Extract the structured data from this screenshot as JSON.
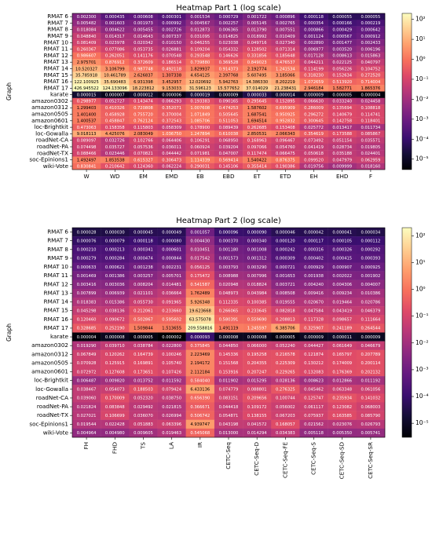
{
  "chart_data": [
    {
      "type": "heatmap",
      "title": "Heatmap Part 1 (log scale)",
      "ylabel": "Graph",
      "xlabel": "",
      "colorscale": "log",
      "colormap": "magma",
      "vrange": [
        3e-06,
        200
      ],
      "colorbar_ticks": [
        "10²",
        "10¹",
        "10⁰",
        "10⁻¹",
        "10⁻²",
        "10⁻³",
        "10⁻⁴",
        "10⁻⁵"
      ],
      "colorbar_tick_values": [
        100,
        10,
        1,
        0.1,
        0.01,
        0.001,
        0.0001,
        1e-05
      ],
      "rows": [
        "RMAT 6",
        "RMAT 7",
        "RMAT 8",
        "RMAT 9",
        "RMAT 10",
        "RMAT 11",
        "RMAT 12",
        "RMAT 13",
        "RMAT 14",
        "RMAT 15",
        "RMAT 16",
        "RMAT 17",
        "karate",
        "amazon0302",
        "amazon0312",
        "amazon0505",
        "amazon0601",
        "loc-Brightkit",
        "loc-Gowalla",
        "roadNet-CA",
        "roadNet-PA",
        "roadNet-TX",
        "soc-Epinions1",
        "wiki-Vote"
      ],
      "columns": [
        "W",
        "WD",
        "EM",
        "EMD",
        "EB",
        "EBD",
        "ET",
        "ETD",
        "EH",
        "EHD",
        "F"
      ],
      "values": [
        [
          0.0023,
          0.000435,
          0.000608,
          0.000301,
          0.001534,
          0.000729,
          0.001722,
          0.000896,
          0.000118,
          5.5e-05,
          5.5e-05
        ],
        [
          0.005482,
          0.001603,
          0.001973,
          0.000992,
          0.004567,
          0.002257,
          0.005145,
          0.002765,
          0.000354,
          0.000166,
          0.000219
        ],
        [
          0.018084,
          0.004622,
          0.005455,
          0.002726,
          0.012873,
          0.006365,
          0.01379,
          0.007551,
          0.000866,
          0.000429,
          0.000642
        ],
        [
          0.04884,
          0.014317,
          0.014643,
          0.007337,
          0.031095,
          0.014825,
          0.018992,
          0.010409,
          0.001124,
          0.000567,
          0.000912
        ],
        [
          0.081409,
          0.023978,
          0.020342,
          0.01015,
          0.046255,
          0.023038,
          0.049716,
          0.02734,
          0.00289,
          0.001477,
          0.002433
        ],
        [
          0.260367,
          0.077086,
          0.053735,
          0.026881,
          0.109204,
          0.054332,
          0.128502,
          0.071314,
          0.006977,
          0.00352,
          0.006196
        ],
        [
          0.986607,
          0.262051,
          0.141176,
          0.070548,
          0.293548,
          0.146626,
          0.331856,
          0.185648,
          0.017128,
          0.008613,
          0.015863
        ],
        [
          2.975701,
          0.876912,
          0.372609,
          0.186514,
          0.73988,
          0.369528,
          0.849023,
          0.476537,
          0.044211,
          0.022125,
          0.040797
        ],
        [
          10.520327,
          3.106799,
          0.987748,
          0.492118,
          1.829937,
          0.914373,
          2.192774,
          1.241534,
          0.114199,
          0.056226,
          0.104752
        ],
        [
          35.785918,
          10.461789,
          2.626837,
          1.307338,
          4.654125,
          2.397768,
          5.607495,
          3.185066,
          0.31823,
          0.152634,
          0.27252
        ],
        [
          122.100925,
          35.690483,
          6.931398,
          3.452957,
          12.020692,
          5.942763,
          14.38633,
          8.202219,
          1.072659,
          0.51392,
          0.714004
        ],
        [
          426.945522,
          124.133096,
          18.223812,
          9.153033,
          31.596123,
          15.577652,
          37.014029,
          21.238431,
          2.946184,
          1.582771,
          1.865376
        ],
        [
          1.5e-05,
          7e-06,
          1.2e-05,
          6e-06,
          1.9e-05,
          9e-06,
          3.3e-05,
          1.4e-05,
          9e-06,
          5e-06,
          4e-06
        ],
        [
          0.298977,
          0.052727,
          0.143474,
          0.066293,
          0.193383,
          0.090165,
          0.295645,
          0.152895,
          0.06663,
          0.03324,
          0.024458
        ],
        [
          1.299403,
          0.410326,
          0.720808,
          0.352071,
          1.007608,
          0.474253,
          1.587602,
          0.695909,
          0.286009,
          0.135694,
          0.108818
        ],
        [
          1.4014,
          0.458928,
          0.75572,
          0.370004,
          1.071849,
          0.505645,
          1.687541,
          0.950925,
          0.296272,
          0.140679,
          0.114741
        ],
        [
          1.400537,
          0.458847,
          0.762124,
          0.372543,
          1.085706,
          0.511053,
          1.694514,
          0.952832,
          0.300645,
          0.142758,
          0.118401
        ],
        [
          0.473063,
          0.158358,
          0.115803,
          0.058309,
          0.1789,
          0.089439,
          0.262685,
          0.153408,
          0.025772,
          0.013417,
          0.011734
        ],
        [
          9.018113,
          4.425076,
          2.083049,
          1.03675,
          1.247894,
          0.610038,
          2.850531,
          2.066343,
          0.354619,
          0.173588,
          0.085867
        ],
        [
          0.089097,
          0.032726,
          0.102766,
          0.064406,
          0.106291,
          0.06895,
          0.168963,
          0.096467,
          0.073492,
          0.051154,
          0.035571
        ],
        [
          0.074498,
          0.035727,
          0.057536,
          0.036011,
          0.060924,
          0.039204,
          0.097066,
          0.05476,
          0.041419,
          0.028734,
          0.019805
        ],
        [
          0.088466,
          0.023446,
          0.070821,
          0.044442,
          0.071981,
          0.047007,
          0.117474,
          0.066475,
          0.050618,
          0.035188,
          0.024401
        ],
        [
          1.492497,
          1.853538,
          0.615327,
          0.306473,
          1.114339,
          0.569414,
          1.540422,
          0.876375,
          0.09952,
          0.047979,
          0.062959
        ],
        [
          0.830841,
          0.210642,
          0.12436,
          0.062224,
          0.290031,
          0.145106,
          0.355414,
          0.190386,
          0.019756,
          0.009999,
          0.01816
        ]
      ]
    },
    {
      "type": "heatmap",
      "title": "Heatmap Part 2 (log scale)",
      "ylabel": "Graph",
      "xlabel": "",
      "colorscale": "log",
      "colormap": "magma",
      "vrange": [
        3e-06,
        200
      ],
      "colorbar_ticks": [
        "10²",
        "10¹",
        "10⁰",
        "10⁻¹",
        "10⁻²",
        "10⁻³",
        "10⁻⁴",
        "10⁻⁵"
      ],
      "colorbar_tick_values": [
        100,
        10,
        1,
        0.1,
        0.01,
        0.001,
        0.0001,
        1e-05
      ],
      "rows": [
        "RMAT 6",
        "RMAT 7",
        "RMAT 8",
        "RMAT 9",
        "RMAT 10",
        "RMAT 11",
        "RMAT 12",
        "RMAT 13",
        "RMAT 14",
        "RMAT 15",
        "RMAT 16",
        "RMAT 17",
        "karate",
        "amazon0302",
        "amazon0312",
        "amazon0505",
        "amazon0601",
        "loc-Brightkit",
        "loc-Gowalla",
        "roadNet-CA",
        "roadNet-PA",
        "roadNet-TX",
        "soc-Epinions1",
        "wiki-Vote"
      ],
      "columns": [
        "FH",
        "FHD",
        "TS",
        "LA",
        "IR",
        "CETC-Seq",
        "CETC-Seq-D",
        "CETC-Seq-FE",
        "CETC-Seq-S",
        "CETC-Seq-SD",
        "CETC-Seq-SR"
      ],
      "values": [
        [
          2.8e-05,
          3e-05,
          4.5e-05,
          4.9e-05,
          0.001057,
          9.6e-05,
          9e-05,
          4.6e-05,
          4.2e-05,
          4.1e-05,
          3.4e-05
        ],
        [
          7.6e-05,
          7.9e-05,
          0.000118,
          8e-05,
          0.00443,
          0.00037,
          0.00034,
          0.00012,
          0.000117,
          0.000105,
          0.000112
        ],
        [
          0.00021,
          0.000213,
          0.000341,
          0.000601,
          0.010451,
          0.00118,
          0.001008,
          0.000242,
          0.000316,
          0.000326,
          0.000292
        ],
        [
          0.000279,
          0.000284,
          0.000474,
          0.000844,
          0.017542,
          0.001573,
          0.001312,
          0.000309,
          0.000402,
          0.000415,
          0.000393
        ],
        [
          0.000633,
          0.000621,
          0.001238,
          0.002231,
          0.056125,
          0.003793,
          0.00329,
          0.000721,
          0.000929,
          0.000907,
          0.000925
        ],
        [
          0.001469,
          0.001386,
          0.003257,
          0.005701,
          0.175472,
          0.008988,
          0.007996,
          0.001653,
          0.001938,
          0.002022,
          0.001902
        ],
        [
          0.003416,
          0.003036,
          0.008204,
          0.014481,
          0.541587,
          0.020948,
          0.018824,
          0.003721,
          0.00424,
          0.004306,
          0.004007
        ],
        [
          0.007899,
          0.006939,
          0.021101,
          0.036664,
          1.762489,
          0.048973,
          0.043984,
          0.008508,
          0.009416,
          0.009234,
          0.010386
        ],
        [
          0.018383,
          0.015386,
          0.05573,
          0.091965,
          5.926348,
          0.112335,
          0.100385,
          0.019555,
          0.02067,
          0.019464,
          0.020786
        ],
        [
          0.045298,
          0.038136,
          0.212061,
          0.23366,
          19.623668,
          0.266065,
          0.233645,
          0.082818,
          0.047584,
          0.043419,
          0.046379
        ],
        [
          0.12046,
          0.090672,
          0.502867,
          0.595602,
          63.575078,
          0.580391,
          0.55969,
          0.208813,
          0.117328,
          0.098657,
          0.111664
        ],
        [
          0.328685,
          0.25219,
          1.509844,
          1.513655,
          209.558816,
          1.491119,
          1.245597,
          6.385706,
          0.325907,
          0.241189,
          0.264544
        ],
        [
          4e-06,
          8e-06,
          5e-06,
          2e-06,
          9.3e-05,
          8e-06,
          8e-06,
          5e-06,
          9e-06,
          1.1e-05,
          9e-06
        ],
        [
          0.01929,
          0.03971,
          0.038784,
          0.0228,
          0.375845,
          0.04485,
          0.066,
          0.05224,
          0.044427,
          0.061649,
          0.046679
        ],
        [
          0.067849,
          0.120262,
          0.164739,
          0.100246,
          2.223469,
          0.145336,
          0.195258,
          0.216578,
          0.121874,
          0.165797,
          0.207789
        ],
        [
          0.070928,
          0.125915,
          0.169891,
          0.10574,
          2.194172,
          0.151568,
          0.204355,
          0.225309,
          0.130212,
          0.174009,
          0.200114
        ],
        [
          0.072972,
          0.127608,
          0.173651,
          0.107426,
          2.112184,
          0.153916,
          0.207247,
          0.229265,
          0.132083,
          0.176369,
          0.202132
        ],
        [
          0.006487,
          0.00982,
          0.013752,
          0.011592,
          0.58404,
          0.011902,
          0.015295,
          0.028136,
          0.008623,
          0.012866,
          0.011192
        ],
        [
          0.038467,
          0.054073,
          0.188503,
          0.079424,
          6.433136,
          0.074779,
          0.088801,
          0.276325,
          0.045462,
          0.063348,
          0.061056
        ],
        [
          0.03906,
          0.170009,
          0.05232,
          0.03875,
          0.65639,
          0.083151,
          0.209656,
          0.100744,
          0.125747,
          0.235934,
          0.141032
        ],
        [
          0.021824,
          0.083848,
          0.029492,
          0.021815,
          0.366671,
          0.044418,
          0.109172,
          0.056002,
          0.061117,
          0.123082,
          0.068003
        ],
        [
          0.027021,
          0.106699,
          0.03607,
          0.026994,
          0.506742,
          0.054871,
          0.138155,
          0.067203,
          0.075937,
          0.163585,
          0.08579
        ],
        [
          0.019544,
          0.022428,
          0.051883,
          0.063396,
          4.939747,
          0.043198,
          0.041572,
          0.168057,
          0.021562,
          0.023076,
          0.026793
        ],
        [
          0.004964,
          0.00498,
          0.009605,
          0.019463,
          0.545068,
          0.013,
          0.014294,
          0.034383,
          0.005118,
          0.00535,
          0.005741
        ]
      ]
    }
  ]
}
